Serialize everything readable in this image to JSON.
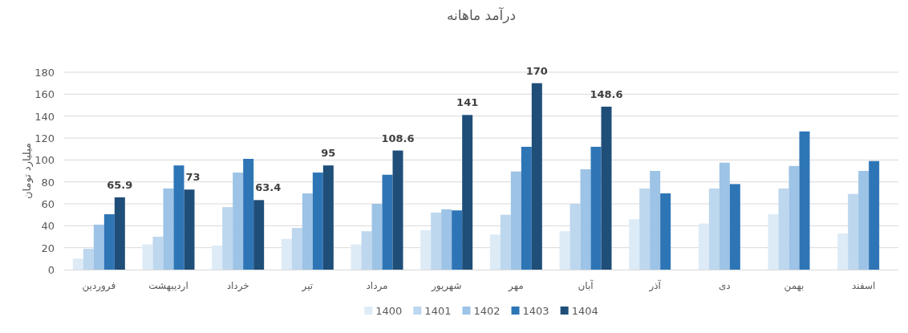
{
  "chart_data": {
    "type": "bar",
    "title": "درآمد ماهانه",
    "ylabel": "میلیارد تومان",
    "categories": [
      "فروردین",
      "اردیبهشت",
      "خرداد",
      "تیر",
      "مرداد",
      "شهریور",
      "مهر",
      "آبان",
      "آذر",
      "دی",
      "بهمن",
      "اسفند"
    ],
    "series": [
      {
        "name": "1400",
        "color": "#ddebf7",
        "values": [
          10,
          23,
          22,
          28,
          23,
          36,
          32,
          35,
          46,
          42,
          50.5,
          33
        ]
      },
      {
        "name": "1401",
        "color": "#bdd7ee",
        "values": [
          19,
          30,
          57,
          38,
          35,
          52,
          50,
          60,
          74,
          74,
          74,
          69
        ]
      },
      {
        "name": "1402",
        "color": "#9dc3e6",
        "values": [
          41,
          74,
          88.5,
          69.5,
          60,
          55,
          89.5,
          91.5,
          90,
          97.5,
          94.5,
          90
        ]
      },
      {
        "name": "1403",
        "color": "#2e75b6",
        "values": [
          50.5,
          95,
          101,
          88.5,
          86.5,
          54,
          112,
          112,
          69.5,
          78,
          126,
          99
        ]
      },
      {
        "name": "1404",
        "color": "#1f4e79",
        "values": [
          65.9,
          73,
          63.4,
          95,
          108.6,
          141,
          170,
          148.6,
          null,
          null,
          null,
          null
        ],
        "value_labels": [
          "65.9",
          "73",
          "63.4",
          "95",
          "108.6",
          "141",
          "170",
          "148.6",
          null,
          null,
          null,
          null
        ]
      }
    ],
    "ylim": [
      0,
      180
    ],
    "yticks": [
      0,
      20,
      40,
      60,
      80,
      100,
      120,
      140,
      160,
      180
    ],
    "grid": "y",
    "legend": "bottom"
  }
}
